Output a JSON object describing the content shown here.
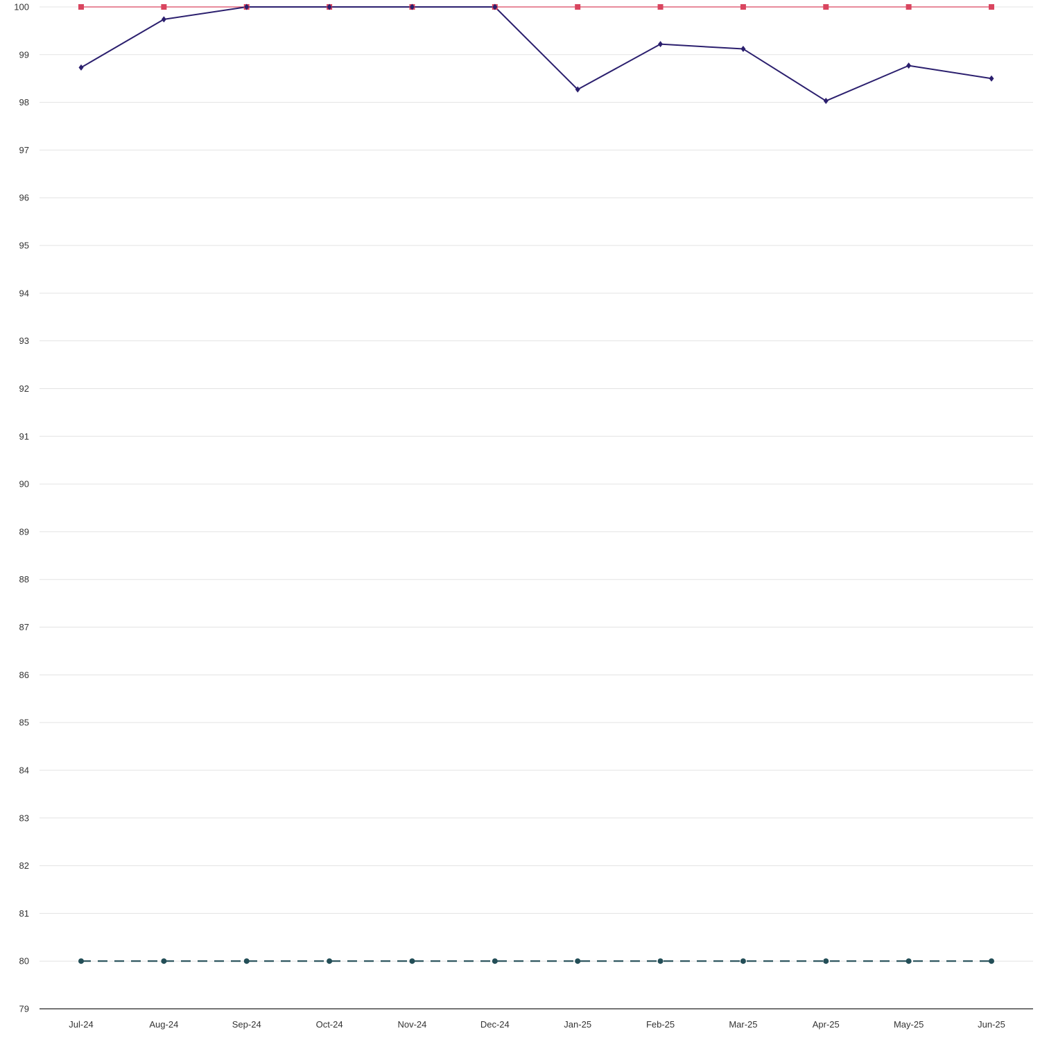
{
  "chart_data": {
    "type": "line",
    "categories": [
      "Jul-24",
      "Aug-24",
      "Sep-24",
      "Oct-24",
      "Nov-24",
      "Dec-24",
      "Jan-25",
      "Feb-25",
      "Mar-25",
      "Apr-25",
      "May-25",
      "Jun-25"
    ],
    "series": [
      {
        "values": [
          100,
          100,
          100,
          100,
          100,
          100,
          100,
          100,
          100,
          100,
          100,
          100
        ],
        "color": "#d9455f",
        "marker": "square",
        "line_style": "solid"
      },
      {
        "values": [
          98.73,
          99.74,
          100,
          100,
          100,
          100,
          98.27,
          99.22,
          99.12,
          98.03,
          98.77,
          98.5
        ],
        "color": "#2b1f6e",
        "marker": "diamond",
        "line_style": "solid"
      },
      {
        "values": [
          80,
          80,
          80,
          80,
          80,
          80,
          80,
          80,
          80,
          80,
          80,
          80
        ],
        "color": "#234e57",
        "marker": "circle",
        "line_style": "dashed"
      }
    ],
    "y_ticks": [
      "100",
      "99",
      "98",
      "97",
      "96",
      "95",
      "94",
      "93",
      "92",
      "91",
      "90",
      "89",
      "88",
      "87",
      "86",
      "85",
      "84",
      "83",
      "82",
      "81",
      "80",
      "79"
    ],
    "ylim": [
      79,
      100
    ],
    "title": "",
    "xlabel": "",
    "ylabel": "",
    "grid": true,
    "legend": "none"
  }
}
